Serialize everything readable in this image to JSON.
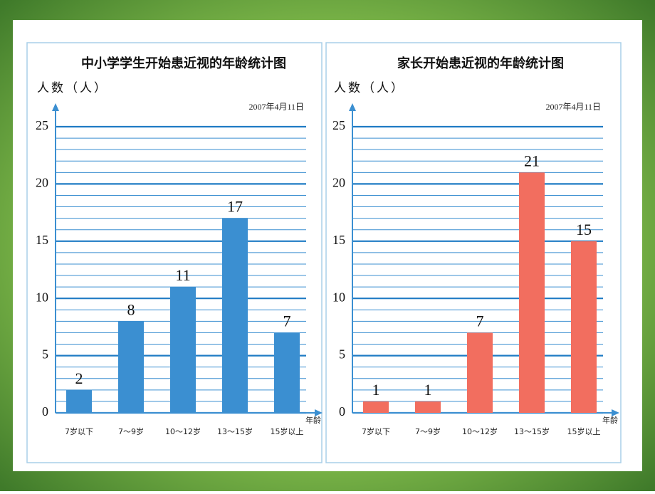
{
  "chart_data": [
    {
      "type": "bar",
      "title": "中小学学生开始患近视的年龄统计图",
      "y_label": "人数（人）",
      "date": "2007年4月11日",
      "x_label": "年龄",
      "categories": [
        "7岁以下",
        "7～9岁",
        "10～12岁",
        "13～15岁",
        "15岁以上"
      ],
      "values": [
        2,
        8,
        11,
        17,
        7
      ],
      "color": "#3b8fd1",
      "ylim": [
        0,
        25
      ],
      "yticks": [
        0,
        5,
        10,
        15,
        20,
        25
      ],
      "minor_yticks": [
        1,
        2,
        3,
        4,
        6,
        7,
        8,
        9,
        11,
        12,
        13,
        14,
        16,
        17,
        18,
        19,
        21,
        22,
        23,
        24
      ],
      "grid": true
    },
    {
      "type": "bar",
      "title": "家长开始患近视的年龄统计图",
      "y_label": "人数（人）",
      "date": "2007年4月11日",
      "x_label": "年龄",
      "categories": [
        "7岁以下",
        "7～9岁",
        "10～12岁",
        "13～15岁",
        "15岁以上"
      ],
      "values": [
        1,
        1,
        7,
        21,
        15
      ],
      "color": "#f26e5f",
      "ylim": [
        0,
        25
      ],
      "yticks": [
        0,
        5,
        10,
        15,
        20,
        25
      ],
      "minor_yticks": [
        1,
        2,
        3,
        4,
        6,
        7,
        8,
        9,
        11,
        12,
        13,
        14,
        16,
        17,
        18,
        19,
        21,
        22,
        23,
        24
      ],
      "grid": true
    }
  ]
}
